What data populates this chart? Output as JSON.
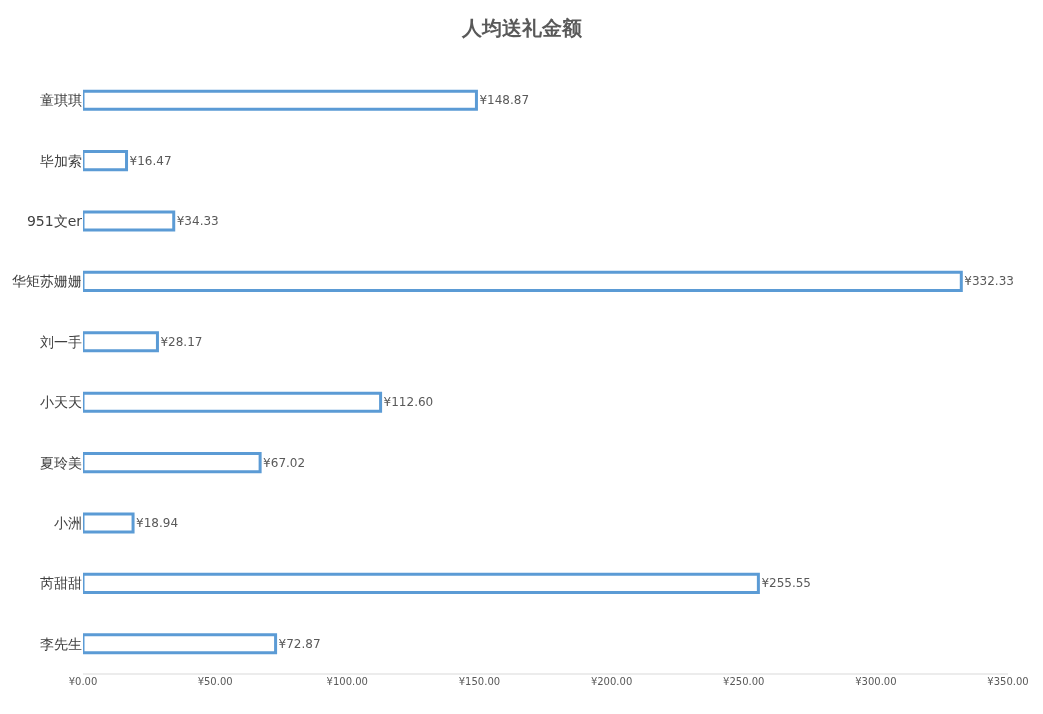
{
  "chart_data": {
    "type": "bar",
    "title": "人均送礼金额",
    "orientation": "horizontal",
    "categories": [
      "童琪琪",
      "毕加索",
      "951文er",
      "华矩苏姗姗",
      "刘一手",
      "小天天",
      "夏玲美",
      "小洲",
      "芮甜甜",
      "李先生"
    ],
    "values": [
      148.87,
      16.47,
      34.33,
      332.33,
      28.17,
      112.6,
      67.02,
      18.94,
      255.55,
      72.87
    ],
    "value_labels": [
      "¥148.87",
      "¥16.47",
      "¥34.33",
      "¥332.33",
      "¥28.17",
      "¥112.60",
      "¥67.02",
      "¥18.94",
      "¥255.55",
      "¥72.87"
    ],
    "color": "#5b9bd5",
    "xlim": [
      0,
      350
    ],
    "xticks": [
      {
        "value": 0,
        "label": "¥0.00"
      },
      {
        "value": 50,
        "label": "¥50.00"
      },
      {
        "value": 100,
        "label": "¥100.00"
      },
      {
        "value": 150,
        "label": "¥150.00"
      },
      {
        "value": 200,
        "label": "¥200.00"
      },
      {
        "value": 250,
        "label": "¥250.00"
      },
      {
        "value": 300,
        "label": "¥300.00"
      },
      {
        "value": 350,
        "label": "¥350.00"
      }
    ],
    "legend": false
  }
}
